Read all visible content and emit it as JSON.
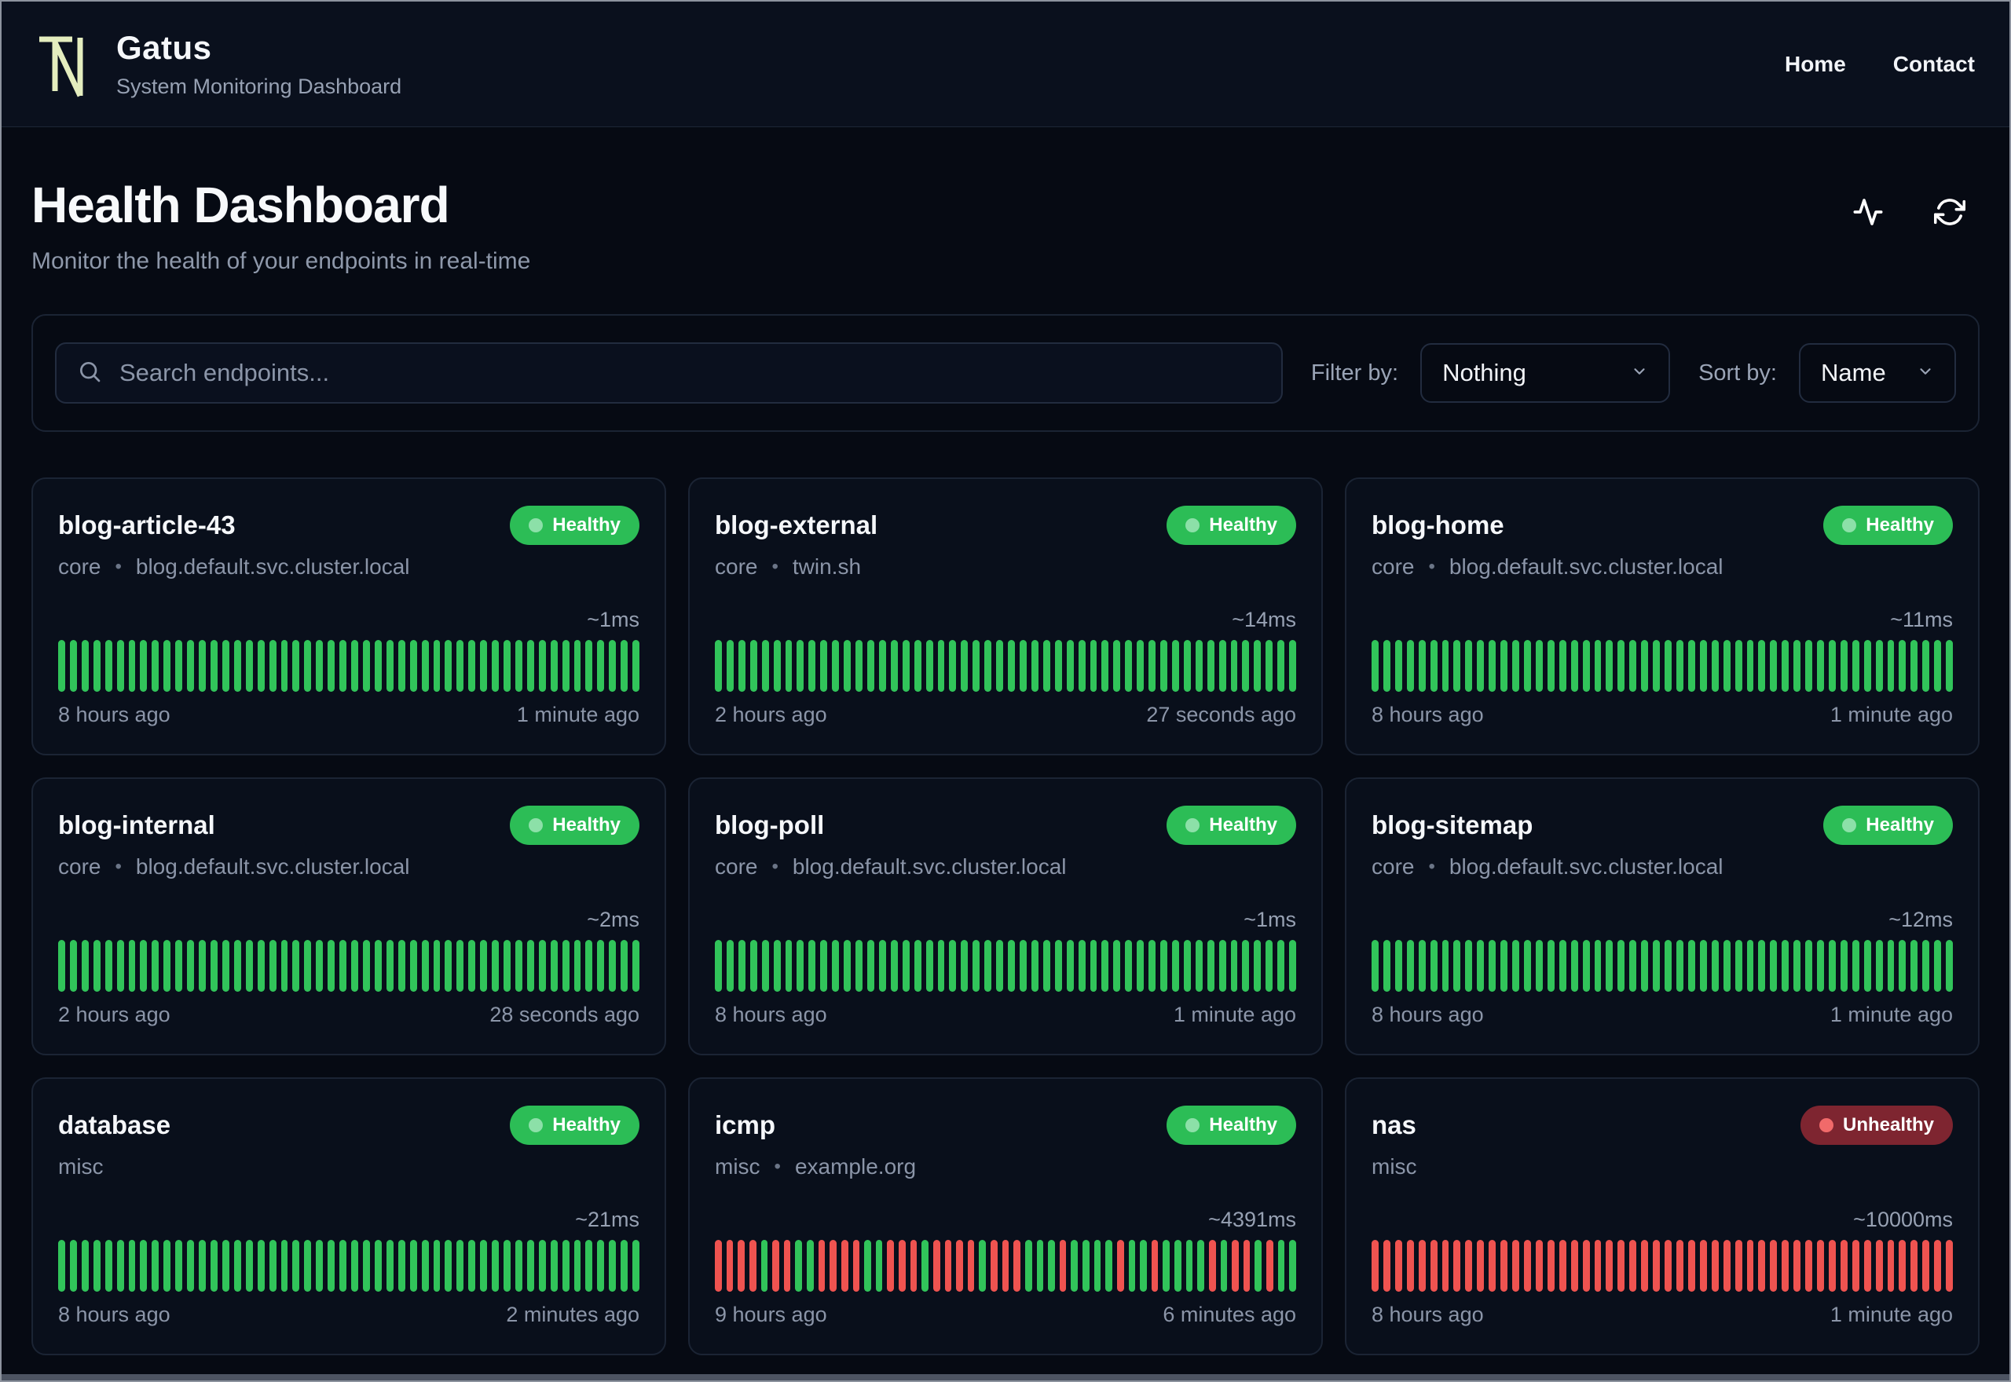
{
  "header": {
    "brand": "Gatus",
    "subtitle": "System Monitoring Dashboard",
    "nav": [
      {
        "label": "Home"
      },
      {
        "label": "Contact"
      }
    ]
  },
  "page": {
    "title": "Health Dashboard",
    "subtitle": "Monitor the health of your endpoints in real-time"
  },
  "controls": {
    "search_placeholder": "Search endpoints...",
    "filter_label": "Filter by:",
    "filter_value": "Nothing",
    "sort_label": "Sort by:",
    "sort_value": "Name"
  },
  "colors": {
    "bar_up": "#31c45a",
    "bar_down": "#ef5350",
    "healthy_badge": "#2cbd56",
    "unhealthy_badge": "#7e2530",
    "logo_stroke": "#e4edbe"
  },
  "endpoints": [
    {
      "name": "blog-article-43",
      "group": "core",
      "host": "blog.default.svc.cluster.local",
      "status": "healthy",
      "status_label": "Healthy",
      "latency": "~1ms",
      "oldest": "8 hours ago",
      "newest": "1 minute ago",
      "history": "uuuuuuuuuuuuuuuuuuuuuuuuuuuuuuuuuuuuuuuuuuuuuuuuuu"
    },
    {
      "name": "blog-external",
      "group": "core",
      "host": "twin.sh",
      "status": "healthy",
      "status_label": "Healthy",
      "latency": "~14ms",
      "oldest": "2 hours ago",
      "newest": "27 seconds ago",
      "history": "uuuuuuuuuuuuuuuuuuuuuuuuuuuuuuuuuuuuuuuuuuuuuuuuuu"
    },
    {
      "name": "blog-home",
      "group": "core",
      "host": "blog.default.svc.cluster.local",
      "status": "healthy",
      "status_label": "Healthy",
      "latency": "~11ms",
      "oldest": "8 hours ago",
      "newest": "1 minute ago",
      "history": "uuuuuuuuuuuuuuuuuuuuuuuuuuuuuuuuuuuuuuuuuuuuuuuuuu"
    },
    {
      "name": "blog-internal",
      "group": "core",
      "host": "blog.default.svc.cluster.local",
      "status": "healthy",
      "status_label": "Healthy",
      "latency": "~2ms",
      "oldest": "2 hours ago",
      "newest": "28 seconds ago",
      "history": "uuuuuuuuuuuuuuuuuuuuuuuuuuuuuuuuuuuuuuuuuuuuuuuuuu"
    },
    {
      "name": "blog-poll",
      "group": "core",
      "host": "blog.default.svc.cluster.local",
      "status": "healthy",
      "status_label": "Healthy",
      "latency": "~1ms",
      "oldest": "8 hours ago",
      "newest": "1 minute ago",
      "history": "uuuuuuuuuuuuuuuuuuuuuuuuuuuuuuuuuuuuuuuuuuuuuuuuuu"
    },
    {
      "name": "blog-sitemap",
      "group": "core",
      "host": "blog.default.svc.cluster.local",
      "status": "healthy",
      "status_label": "Healthy",
      "latency": "~12ms",
      "oldest": "8 hours ago",
      "newest": "1 minute ago",
      "history": "uuuuuuuuuuuuuuuuuuuuuuuuuuuuuuuuuuuuuuuuuuuuuuuuuu"
    },
    {
      "name": "database",
      "group": "misc",
      "host": null,
      "status": "healthy",
      "status_label": "Healthy",
      "latency": "~21ms",
      "oldest": "8 hours ago",
      "newest": "2 minutes ago",
      "history": "uuuuuuuuuuuuuuuuuuuuuuuuuuuuuuuuuuuuuuuuuuuuuuuuuu"
    },
    {
      "name": "icmp",
      "group": "misc",
      "host": "example.org",
      "status": "healthy",
      "status_label": "Healthy",
      "latency": "~4391ms",
      "oldest": "9 hours ago",
      "newest": "6 minutes ago",
      "history": "ddddudduudddduudddudddduddduuuduuuuduuduuuududduduu"
    },
    {
      "name": "nas",
      "group": "misc",
      "host": null,
      "status": "unhealthy",
      "status_label": "Unhealthy",
      "latency": "~10000ms",
      "oldest": "8 hours ago",
      "newest": "1 minute ago",
      "history": "dddddddddddddddddddddddddddddddddddddddddddddddddd"
    }
  ]
}
